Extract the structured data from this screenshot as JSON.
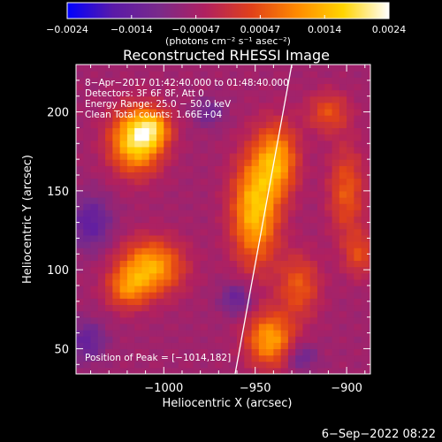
{
  "chart_data": {
    "type": "heatmap",
    "title": "Reconstructed RHESSI Image",
    "xlabel": "Heliocentric X (arcsec)",
    "ylabel": "Heliocentric Y (arcsec)",
    "xlim": [
      -1048,
      -887
    ],
    "ylim": [
      34,
      230
    ],
    "x_ticks": [
      {
        "value": -1000,
        "label": "−1000"
      },
      {
        "value": -950,
        "label": "−950"
      },
      {
        "value": -900,
        "label": "−900"
      }
    ],
    "y_ticks": [
      {
        "value": 50,
        "label": "50"
      },
      {
        "value": 100,
        "label": "100"
      },
      {
        "value": 150,
        "label": "150"
      },
      {
        "value": 200,
        "label": "200"
      }
    ],
    "colorbar": {
      "range": [
        -0.0024,
        0.0024
      ],
      "tick_labels": [
        "−0.0024",
        "−0.0014",
        "−0.00047",
        "0.00047",
        "0.0014",
        "0.0024"
      ],
      "unit_label": "(photons cm⁻² s⁻¹ asec⁻²)",
      "colormap": [
        "#0000ff",
        "#5a1aa8",
        "#7a2a8a",
        "#b02060",
        "#e0401a",
        "#ff8a00",
        "#ffd400",
        "#ffffff"
      ]
    },
    "info": [
      "8−Apr−2017 01:42:40.000 to 01:48:40.000",
      "Detectors: 3F 6F 8F, Att 0",
      "Energy Range: 25.0 − 50.0 keV",
      "Clean     Total counts: 1.66E+04"
    ],
    "peak_label": "Position of Peak = [−1014,182]",
    "limb_line": [
      {
        "x": -961,
        "y": 34
      },
      {
        "x": -930,
        "y": 230
      }
    ],
    "sources": [
      {
        "x": -1015,
        "y": 182,
        "sigma_x": 10,
        "sigma_y": 14,
        "amplitude": 0.0024
      },
      {
        "x": -1006,
        "y": 190,
        "sigma_x": 7,
        "sigma_y": 8,
        "amplitude": 0.0013
      },
      {
        "x": -950,
        "y": 138,
        "sigma_x": 9,
        "sigma_y": 24,
        "amplitude": 0.0021
      },
      {
        "x": -938,
        "y": 170,
        "sigma_x": 8,
        "sigma_y": 16,
        "amplitude": 0.0017
      },
      {
        "x": -1007,
        "y": 102,
        "sigma_x": 12,
        "sigma_y": 12,
        "amplitude": 0.0019
      },
      {
        "x": -1020,
        "y": 88,
        "sigma_x": 8,
        "sigma_y": 9,
        "amplitude": 0.0012
      },
      {
        "x": -942,
        "y": 56,
        "sigma_x": 9,
        "sigma_y": 12,
        "amplitude": 0.0018
      },
      {
        "x": -926,
        "y": 90,
        "sigma_x": 8,
        "sigma_y": 14,
        "amplitude": 0.0011
      },
      {
        "x": -900,
        "y": 150,
        "sigma_x": 7,
        "sigma_y": 20,
        "amplitude": 0.0011
      },
      {
        "x": -910,
        "y": 200,
        "sigma_x": 8,
        "sigma_y": 9,
        "amplitude": 0.001
      },
      {
        "x": -893,
        "y": 110,
        "sigma_x": 6,
        "sigma_y": 10,
        "amplitude": 0.0009
      }
    ],
    "negative_regions": [
      {
        "x": -1040,
        "y": 130,
        "sigma_x": 8,
        "sigma_y": 12,
        "amplitude": -0.001
      },
      {
        "x": -960,
        "y": 82,
        "sigma_x": 6,
        "sigma_y": 7,
        "amplitude": -0.0009
      },
      {
        "x": -1042,
        "y": 55,
        "sigma_x": 7,
        "sigma_y": 9,
        "amplitude": -0.0009
      },
      {
        "x": -975,
        "y": 200,
        "sigma_x": 6,
        "sigma_y": 6,
        "amplitude": -0.0007
      },
      {
        "x": -925,
        "y": 45,
        "sigma_x": 6,
        "sigma_y": 6,
        "amplitude": -0.0008
      }
    ]
  },
  "footer_date": "6−Sep−2022 08:22"
}
